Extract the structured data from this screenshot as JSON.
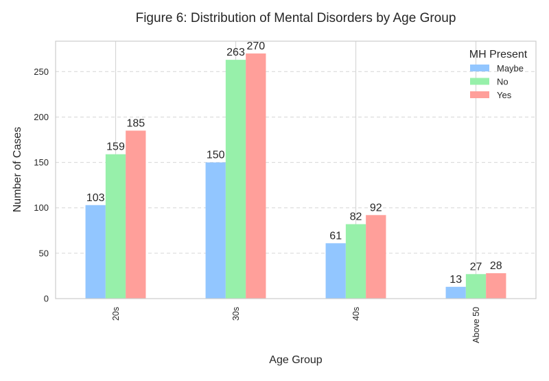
{
  "chart_data": {
    "type": "bar",
    "title": "Figure 6: Distribution of Mental Disorders by Age Group",
    "xlabel": "Age Group",
    "ylabel": "Number of Cases",
    "categories": [
      "20s",
      "30s",
      "40s",
      "Above 50"
    ],
    "series": [
      {
        "name": "Maybe",
        "values": [
          103,
          150,
          61,
          13
        ],
        "color": "#92c6ff"
      },
      {
        "name": "No",
        "values": [
          159,
          263,
          82,
          27
        ],
        "color": "#97f0aa"
      },
      {
        "name": "Yes",
        "values": [
          185,
          270,
          92,
          28
        ],
        "color": "#ff9f9a"
      }
    ],
    "ylim": [
      0,
      283.5
    ],
    "yticks": [
      0,
      50,
      100,
      150,
      200,
      250
    ],
    "grid": true,
    "legend": {
      "title": "MH Present",
      "placement": "top-right"
    }
  }
}
